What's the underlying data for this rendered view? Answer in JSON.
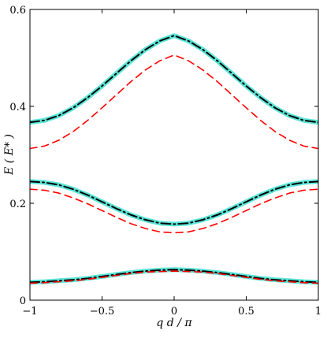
{
  "chart_data": {
    "type": "line",
    "title": "",
    "xlabel": "q d / π",
    "ylabel": "E ( E* )",
    "xlim": [
      -1,
      1
    ],
    "ylim": [
      0,
      0.6
    ],
    "xticks": [
      {
        "value": -1,
        "label": "−1"
      },
      {
        "value": -0.5,
        "label": "−0.5"
      },
      {
        "value": 0,
        "label": "0"
      },
      {
        "value": 0.5,
        "label": "0.5"
      },
      {
        "value": 1,
        "label": "1"
      }
    ],
    "yticks": [
      {
        "value": 0,
        "label": "0"
      },
      {
        "value": 0.2,
        "label": "0.2"
      },
      {
        "value": 0.4,
        "label": "0.4"
      },
      {
        "value": 0.6,
        "label": "0.6"
      }
    ],
    "grid": false,
    "legend": "none",
    "x": [
      -1,
      -0.9,
      -0.8,
      -0.7,
      -0.6,
      -0.5,
      -0.4,
      -0.3,
      -0.2,
      -0.1,
      0,
      0.1,
      0.2,
      0.3,
      0.4,
      0.5,
      0.6,
      0.7,
      0.8,
      0.9,
      1
    ],
    "series": [
      {
        "style": "cyan-thick",
        "color": "#40e0d0",
        "band": 1,
        "values": [
          0.037,
          0.038,
          0.04,
          0.042,
          0.045,
          0.049,
          0.053,
          0.057,
          0.06,
          0.062,
          0.063,
          0.062,
          0.06,
          0.057,
          0.053,
          0.049,
          0.045,
          0.042,
          0.04,
          0.038,
          0.037
        ]
      },
      {
        "style": "black-dashed",
        "color": "#000000",
        "band": 1,
        "values": [
          0.037,
          0.038,
          0.04,
          0.042,
          0.045,
          0.049,
          0.053,
          0.057,
          0.06,
          0.062,
          0.063,
          0.062,
          0.06,
          0.057,
          0.053,
          0.049,
          0.045,
          0.042,
          0.04,
          0.038,
          0.037
        ]
      },
      {
        "style": "red-dashed",
        "color": "#ff0000",
        "band": 1,
        "values": [
          0.035,
          0.036,
          0.038,
          0.04,
          0.043,
          0.047,
          0.051,
          0.055,
          0.058,
          0.059,
          0.06,
          0.059,
          0.058,
          0.055,
          0.051,
          0.047,
          0.043,
          0.04,
          0.038,
          0.036,
          0.035
        ]
      },
      {
        "style": "cyan-thick",
        "color": "#40e0d0",
        "band": 2,
        "values": [
          0.245,
          0.243,
          0.238,
          0.229,
          0.217,
          0.203,
          0.189,
          0.176,
          0.166,
          0.159,
          0.157,
          0.159,
          0.166,
          0.176,
          0.189,
          0.203,
          0.217,
          0.229,
          0.238,
          0.243,
          0.245
        ]
      },
      {
        "style": "black-dashed",
        "color": "#000000",
        "band": 2,
        "values": [
          0.245,
          0.243,
          0.238,
          0.229,
          0.217,
          0.203,
          0.189,
          0.176,
          0.166,
          0.159,
          0.157,
          0.159,
          0.166,
          0.176,
          0.189,
          0.203,
          0.217,
          0.229,
          0.238,
          0.243,
          0.245
        ]
      },
      {
        "style": "red-dashed",
        "color": "#ff0000",
        "band": 2,
        "values": [
          0.229,
          0.227,
          0.221,
          0.211,
          0.199,
          0.185,
          0.171,
          0.158,
          0.148,
          0.141,
          0.139,
          0.141,
          0.148,
          0.158,
          0.171,
          0.185,
          0.199,
          0.211,
          0.221,
          0.227,
          0.229
        ]
      },
      {
        "style": "cyan-thick",
        "color": "#40e0d0",
        "band": 3,
        "values": [
          0.367,
          0.371,
          0.381,
          0.397,
          0.418,
          0.442,
          0.468,
          0.494,
          0.517,
          0.535,
          0.546,
          0.535,
          0.517,
          0.494,
          0.468,
          0.442,
          0.418,
          0.397,
          0.381,
          0.371,
          0.367
        ]
      },
      {
        "style": "black-dashed",
        "color": "#000000",
        "band": 3,
        "values": [
          0.367,
          0.371,
          0.381,
          0.397,
          0.418,
          0.442,
          0.468,
          0.494,
          0.517,
          0.535,
          0.546,
          0.535,
          0.517,
          0.494,
          0.468,
          0.442,
          0.418,
          0.397,
          0.381,
          0.371,
          0.367
        ]
      },
      {
        "style": "red-dashed",
        "color": "#ff0000",
        "band": 3,
        "values": [
          0.313,
          0.318,
          0.33,
          0.348,
          0.371,
          0.397,
          0.424,
          0.451,
          0.475,
          0.494,
          0.506,
          0.494,
          0.475,
          0.451,
          0.424,
          0.397,
          0.371,
          0.348,
          0.33,
          0.318,
          0.313
        ]
      }
    ]
  }
}
